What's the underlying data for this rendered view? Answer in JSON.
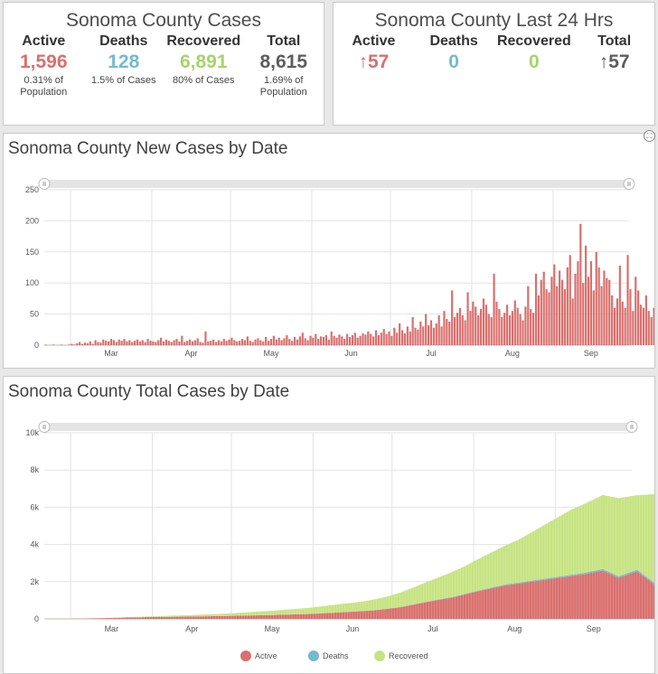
{
  "summary": {
    "title": "Sonoma County Cases",
    "stats": [
      {
        "label": "Active",
        "value": "1,596",
        "sub": "0.31% of\nPopulation",
        "color": "#d9706e"
      },
      {
        "label": "Deaths",
        "value": "128",
        "sub": "1.5% of Cases",
        "color": "#73b9d1"
      },
      {
        "label": "Recovered",
        "value": "6,891",
        "sub": "80% of Cases",
        "color": "#a7d36b"
      },
      {
        "label": "Total",
        "value": "8,615",
        "sub": "1.69% of\nPopulation",
        "color": "#5d5d5d"
      }
    ]
  },
  "last24": {
    "title": "Sonoma County Last 24 Hrs",
    "stats": [
      {
        "label": "Active",
        "value": "↑57",
        "color": "#d9706e"
      },
      {
        "label": "Deaths",
        "value": "0",
        "color": "#73b9d1"
      },
      {
        "label": "Recovered",
        "value": "0",
        "color": "#a7d36b"
      },
      {
        "label": "Total",
        "value": "↑57",
        "color": "#5d5d5d"
      }
    ]
  },
  "chart_data": [
    {
      "type": "bar",
      "title": "Sonoma County New Cases by Date",
      "x_start": "2020-02-20",
      "x_end": "2020-09-30",
      "x_tick_labels": [
        "Mar",
        "Apr",
        "May",
        "Jun",
        "Jul",
        "Aug",
        "Sep"
      ],
      "ylim": [
        0,
        250
      ],
      "y_ticks": [
        0,
        50,
        100,
        150,
        200,
        250
      ],
      "grid": true,
      "color": "#d9706e",
      "values": [
        1,
        0,
        0,
        1,
        0,
        0,
        1,
        0,
        0,
        1,
        2,
        1,
        3,
        5,
        2,
        4,
        3,
        6,
        2,
        8,
        5,
        4,
        9,
        7,
        6,
        10,
        8,
        5,
        9,
        7,
        10,
        6,
        8,
        5,
        7,
        9,
        6,
        8,
        5,
        10,
        7,
        6,
        5,
        8,
        12,
        6,
        9,
        7,
        5,
        8,
        10,
        6,
        15,
        5,
        7,
        9,
        6,
        8,
        11,
        5,
        4,
        22,
        6,
        7,
        9,
        5,
        8,
        6,
        10,
        7,
        9,
        12,
        8,
        6,
        7,
        10,
        8,
        14,
        7,
        5,
        9,
        11,
        8,
        6,
        13,
        7,
        10,
        15,
        9,
        12,
        8,
        11,
        16,
        10,
        7,
        13,
        9,
        14,
        20,
        11,
        8,
        15,
        12,
        18,
        10,
        14,
        13,
        16,
        9,
        22,
        15,
        12,
        17,
        14,
        10,
        18,
        13,
        16,
        20,
        12,
        15,
        19,
        17,
        22,
        18,
        14,
        24,
        16,
        20,
        26,
        18,
        22,
        15,
        28,
        20,
        35,
        24,
        19,
        30,
        22,
        45,
        28,
        25,
        38,
        30,
        50,
        32,
        40,
        28,
        35,
        48,
        30,
        55,
        42,
        38,
        88,
        45,
        52,
        60,
        48,
        40,
        85,
        55,
        70,
        62,
        48,
        58,
        75,
        65,
        50,
        45,
        115,
        70,
        58,
        45,
        52,
        65,
        48,
        55,
        72,
        60,
        50,
        40,
        62,
        95,
        58,
        52,
        115,
        80,
        105,
        118,
        90,
        85,
        110,
        130,
        95,
        120,
        105,
        90,
        125,
        145,
        75,
        115,
        135,
        195,
        100,
        160,
        110,
        135,
        88,
        150,
        125,
        95,
        120,
        108,
        105,
        80,
        60,
        75,
        128,
        70,
        60,
        145,
        90,
        55,
        110,
        88,
        65,
        60,
        80,
        55,
        45,
        60,
        50,
        38,
        55,
        70,
        42,
        48,
        62,
        110,
        40,
        55,
        68,
        50,
        75,
        60,
        48,
        35,
        58,
        45,
        50,
        60,
        52,
        48,
        40,
        62,
        90,
        85,
        55,
        80,
        70,
        58,
        115,
        60,
        50,
        78,
        75,
        60,
        55
      ]
    },
    {
      "type": "area",
      "title": "Sonoma County Total Cases by Date",
      "x_start": "2020-02-20",
      "x_end": "2020-09-30",
      "x_tick_labels": [
        "Mar",
        "Apr",
        "May",
        "Jun",
        "Jul",
        "Aug",
        "Sep"
      ],
      "ylim": [
        0,
        10000
      ],
      "y_tick_labels": [
        "0",
        "2k",
        "4k",
        "6k",
        "8k",
        "10k"
      ],
      "grid": true,
      "stacked": true,
      "legend_position": "bottom",
      "series": [
        {
          "name": "Active",
          "color": "#d9706e",
          "points": [
            [
              0,
              0
            ],
            [
              12,
              10
            ],
            [
              25,
              50
            ],
            [
              40,
              100
            ],
            [
              55,
              120
            ],
            [
              70,
              160
            ],
            [
              85,
              200
            ],
            [
              100,
              260
            ],
            [
              110,
              330
            ],
            [
              125,
              450
            ],
            [
              135,
              620
            ],
            [
              145,
              900
            ],
            [
              155,
              1150
            ],
            [
              165,
              1500
            ],
            [
              175,
              1800
            ],
            [
              185,
              2000
            ],
            [
              195,
              2200
            ],
            [
              205,
              2400
            ],
            [
              212,
              2600
            ],
            [
              218,
              2200
            ],
            [
              225,
              2550
            ],
            [
              232,
              1800
            ],
            [
              240,
              2100
            ],
            [
              248,
              1850
            ],
            [
              256,
              2000
            ],
            [
              262,
              1300
            ],
            [
              270,
              1500
            ],
            [
              278,
              1400
            ],
            [
              285,
              1500
            ],
            [
              288,
              1600
            ]
          ]
        },
        {
          "name": "Deaths",
          "color": "#73b9d1",
          "points": [
            [
              0,
              0
            ],
            [
              40,
              2
            ],
            [
              80,
              4
            ],
            [
              110,
              6
            ],
            [
              130,
              12
            ],
            [
              150,
              25
            ],
            [
              170,
              40
            ],
            [
              190,
              60
            ],
            [
              210,
              80
            ],
            [
              230,
              100
            ],
            [
              250,
              110
            ],
            [
              270,
              120
            ],
            [
              288,
              128
            ]
          ]
        },
        {
          "name": "Recovered",
          "color": "#c6e381",
          "points": [
            [
              0,
              0
            ],
            [
              25,
              5
            ],
            [
              40,
              30
            ],
            [
              55,
              80
            ],
            [
              70,
              130
            ],
            [
              85,
              220
            ],
            [
              100,
              320
            ],
            [
              110,
              420
            ],
            [
              120,
              500
            ],
            [
              130,
              650
            ],
            [
              140,
              900
            ],
            [
              150,
              1200
            ],
            [
              160,
              1500
            ],
            [
              170,
              1900
            ],
            [
              180,
              2300
            ],
            [
              190,
              2900
            ],
            [
              200,
              3500
            ],
            [
              210,
              3900
            ],
            [
              218,
              4200
            ],
            [
              225,
              4000
            ],
            [
              232,
              4800
            ],
            [
              240,
              4700
            ],
            [
              248,
              5100
            ],
            [
              256,
              5000
            ],
            [
              262,
              5800
            ],
            [
              270,
              5900
            ],
            [
              278,
              6300
            ],
            [
              285,
              6700
            ],
            [
              288,
              6891
            ]
          ]
        }
      ]
    }
  ]
}
